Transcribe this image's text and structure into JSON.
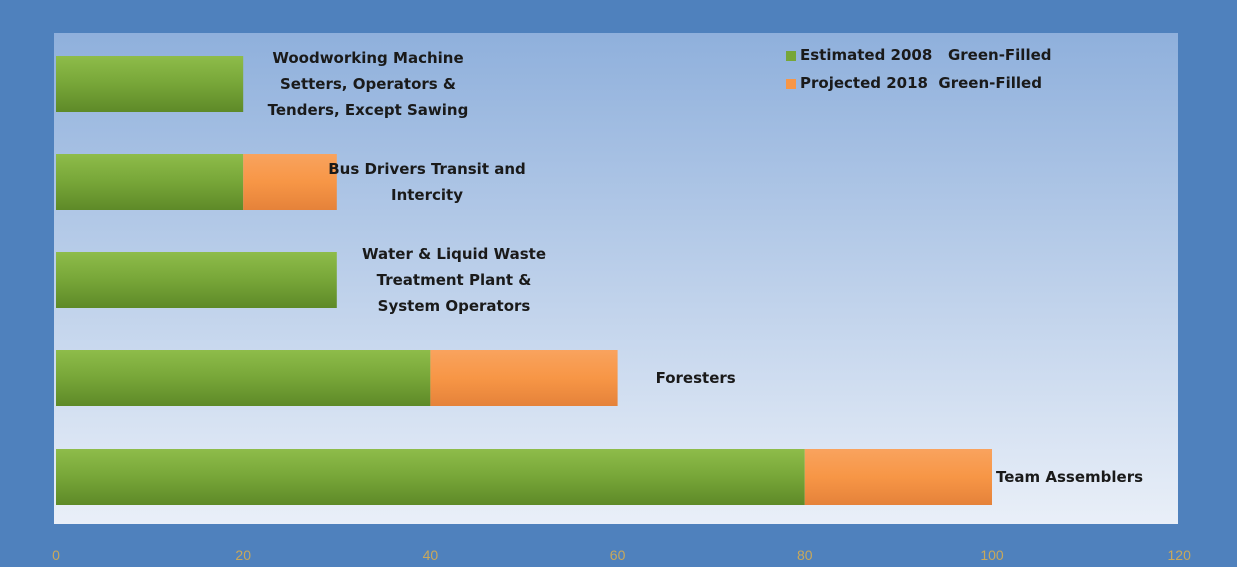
{
  "chart_data": {
    "type": "bar",
    "orientation": "horizontal",
    "stacked": true,
    "categories": [
      "Woodworking Machine Setters, Operators & Tenders, Except Sawing",
      "Bus Drivers Transit and Intercity",
      "Water & Liquid Waste Treatment Plant & System Operators",
      "Foresters",
      "Team Assemblers"
    ],
    "category_label_lines": [
      [
        "Woodworking Machine",
        "Setters, Operators &",
        "Tenders, Except Sawing"
      ],
      [
        "Bus Drivers Transit and",
        "Intercity"
      ],
      [
        "Water & Liquid Waste",
        "Treatment Plant &",
        "System Operators"
      ],
      [
        "Foresters"
      ],
      [
        "Team Assemblers"
      ]
    ],
    "series": [
      {
        "name": "Estimated 2008   Green-Filled",
        "color": "#77a638",
        "values": [
          20,
          20,
          30,
          40,
          80
        ]
      },
      {
        "name": "Projected 2018  Green-Filled",
        "color": "#f79646",
        "values": [
          0,
          10,
          0,
          20,
          20
        ]
      }
    ],
    "xlim": [
      0,
      120
    ],
    "xticks": [
      "0",
      "20",
      "40",
      "60",
      "80",
      "100",
      "120"
    ],
    "grid": false,
    "legend_position": "top-right",
    "colors": {
      "frame": "#4f81bd",
      "plot_top": "#8fb0dc",
      "plot_bottom": "#e9eff8"
    }
  }
}
